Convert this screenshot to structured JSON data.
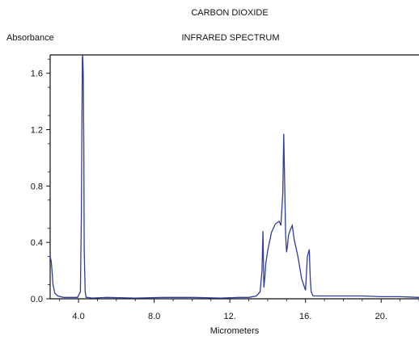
{
  "chart_data": {
    "type": "line",
    "title": "CARBON DIOXIDE",
    "subtitle": "INFRARED SPECTRUM",
    "xlabel": "Micrometers",
    "ylabel": "Absorbance",
    "xlim": [
      2.5,
      22.0
    ],
    "ylim": [
      0.0,
      1.73
    ],
    "x_ticks": [
      4.0,
      8.0,
      12.0,
      16.0,
      20.0
    ],
    "x_tick_labels": [
      "4.0",
      "8.0",
      "12.",
      "16.",
      "20."
    ],
    "y_ticks": [
      0.0,
      0.4,
      0.8,
      1.2,
      1.6
    ],
    "y_tick_labels": [
      "0.0",
      "0.4",
      "0.8",
      "1.2",
      "1.6"
    ],
    "grid": false,
    "line_color": "#2f3d9a",
    "series": [
      {
        "x": [
          2.5,
          2.55,
          2.6,
          2.65,
          2.75,
          2.9,
          3.2,
          3.6,
          3.95,
          4.1,
          4.15,
          4.2,
          4.22,
          4.25,
          4.28,
          4.3,
          4.35,
          4.4,
          4.5,
          4.7,
          5.5,
          7.0,
          8.5,
          10.0,
          11.5,
          12.5,
          13.0,
          13.4,
          13.6,
          13.7,
          13.75,
          13.8,
          13.85,
          13.9,
          14.0,
          14.2,
          14.4,
          14.6,
          14.7,
          14.8,
          14.85,
          14.9,
          14.95,
          15.0,
          15.05,
          15.1,
          15.2,
          15.3,
          15.4,
          15.6,
          15.8,
          16.0,
          16.1,
          16.2,
          16.25,
          16.3,
          16.4,
          17.0,
          18.0,
          19.0,
          20.0,
          21.0,
          22.0
        ],
        "y": [
          0.3,
          0.27,
          0.2,
          0.1,
          0.04,
          0.02,
          0.01,
          0.01,
          0.01,
          0.05,
          0.6,
          1.7,
          1.73,
          1.6,
          1.1,
          0.35,
          0.05,
          0.01,
          0.01,
          0.005,
          0.01,
          0.005,
          0.01,
          0.01,
          0.005,
          0.01,
          0.01,
          0.02,
          0.05,
          0.2,
          0.48,
          0.08,
          0.15,
          0.25,
          0.34,
          0.47,
          0.53,
          0.55,
          0.52,
          0.75,
          1.17,
          0.8,
          0.45,
          0.33,
          0.38,
          0.45,
          0.49,
          0.52,
          0.42,
          0.3,
          0.14,
          0.06,
          0.3,
          0.35,
          0.15,
          0.05,
          0.02,
          0.02,
          0.02,
          0.02,
          0.015,
          0.015,
          0.01
        ]
      }
    ]
  }
}
